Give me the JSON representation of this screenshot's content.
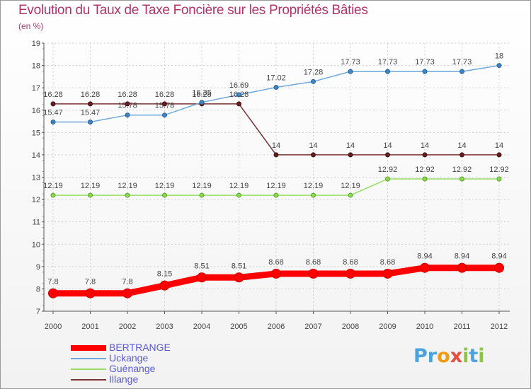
{
  "title": "Evolution du Taux de Taxe Foncière sur les Propriétés Bâties",
  "subtitle": "(en %)",
  "logo": {
    "text": "Proxiti",
    "letters": [
      "P",
      "r",
      "o",
      "x",
      "i",
      "t",
      "i"
    ],
    "colors": [
      "#4aa3df",
      "#4aa3df",
      "#f39c12",
      "#e74c3c",
      "#8cc63f",
      "#4aa3df",
      "#8cc63f"
    ]
  },
  "chart_data": {
    "type": "line",
    "title": "Evolution du Taux de Taxe Foncière sur les Propriétés Bâties",
    "ylabel": "(en %)",
    "xlabel": "",
    "categories": [
      "2000",
      "2001",
      "2002",
      "2003",
      "2004",
      "2005",
      "2006",
      "2007",
      "2008",
      "2009",
      "2010",
      "2011",
      "2012"
    ],
    "ylim": [
      7,
      19
    ],
    "yticks": [
      "7",
      "8",
      "9",
      "10",
      "11",
      "12",
      "13",
      "14",
      "15",
      "16",
      "17",
      "18",
      "19"
    ],
    "series": [
      {
        "name": "BERTRANGE",
        "color": "#ff0000",
        "values": [
          7.8,
          7.8,
          7.8,
          8.15,
          8.51,
          8.51,
          8.68,
          8.68,
          8.68,
          8.68,
          8.94,
          8.94,
          8.94
        ],
        "labels": [
          "7.8",
          "7.8",
          "7.8",
          "8.15",
          "8.51",
          "8.51",
          "8.68",
          "8.68",
          "8.68",
          "8.68",
          "8.94",
          "8.94",
          "8.94"
        ]
      },
      {
        "name": "Uckange",
        "color": "#6fa8dc",
        "values": [
          15.47,
          15.47,
          15.78,
          15.78,
          16.35,
          16.69,
          17.02,
          17.28,
          17.73,
          17.73,
          17.73,
          17.73,
          18
        ],
        "labels": [
          "15.47",
          "15.47",
          "15.78",
          "15.78",
          "16.35",
          "16.69",
          "17.02",
          "17.28",
          "17.73",
          "17.73",
          "17.73",
          "17.73",
          "18"
        ]
      },
      {
        "name": "Guénange",
        "color": "#99dd66",
        "values": [
          12.19,
          12.19,
          12.19,
          12.19,
          12.19,
          12.19,
          12.19,
          12.19,
          12.19,
          12.92,
          12.92,
          12.92,
          12.92
        ],
        "labels": [
          "12.19",
          "12.19",
          "12.19",
          "12.19",
          "12.19",
          "12.19",
          "12.19",
          "12.19",
          "12.19",
          "12.92",
          "12.92",
          "12.92",
          "12.92"
        ]
      },
      {
        "name": "Illange",
        "color": "#7a3333",
        "values": [
          16.28,
          16.28,
          16.28,
          16.28,
          16.28,
          16.28,
          14,
          14,
          14,
          14,
          14,
          14,
          14
        ],
        "labels": [
          "16.28",
          "16.28",
          "16.28",
          "16.28",
          "16.28",
          "16.28",
          "14",
          "14",
          "14",
          "14",
          "14",
          "14",
          "14"
        ]
      }
    ],
    "legend": "bottom-left"
  }
}
